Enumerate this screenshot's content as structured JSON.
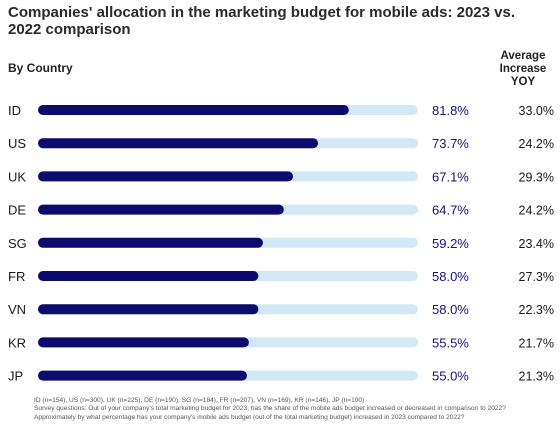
{
  "chart_data": {
    "type": "bar",
    "orientation": "horizontal",
    "title": "Companies' allocation in the marketing budget for mobile ads: 2023 vs. 2022 comparison",
    "category_header": "By Country",
    "secondary_header": "Average Increase YOY",
    "categories": [
      "ID",
      "US",
      "UK",
      "DE",
      "SG",
      "FR",
      "VN",
      "KR",
      "JP"
    ],
    "values": [
      81.8,
      73.7,
      67.1,
      64.7,
      59.2,
      58.0,
      58.0,
      55.5,
      55.0
    ],
    "value_labels": [
      "81.8%",
      "73.7%",
      "67.1%",
      "64.7%",
      "59.2%",
      "58.0%",
      "58.0%",
      "55.5%",
      "55.0%"
    ],
    "avg_increase": [
      "33.0%",
      "24.2%",
      "29.3%",
      "24.2%",
      "23.4%",
      "27.3%",
      "22.3%",
      "21.7%",
      "21.3%"
    ],
    "xlim": [
      0,
      100
    ],
    "grid": false,
    "colors": {
      "bar": "#0d0b6e",
      "track": "#d3e8f5",
      "value_text": "#14127a"
    }
  },
  "footnote": {
    "line1": "ID (n=154), US (n=300), UK (n=225), DE (n=190), SG (n=184), FR (n=207), VN (n=169), KR (n=146), JP (n=100)",
    "line2": "Survey questions: Out of your company's total marketing budget for 2023, has the share of the mobile ads budget increased or decreased in comparison to 2022?",
    "line3": "Approximately by what percentage has your company's mobile ads budget (out of the total marketing budget) increased in 2023 compared to 2022?"
  }
}
